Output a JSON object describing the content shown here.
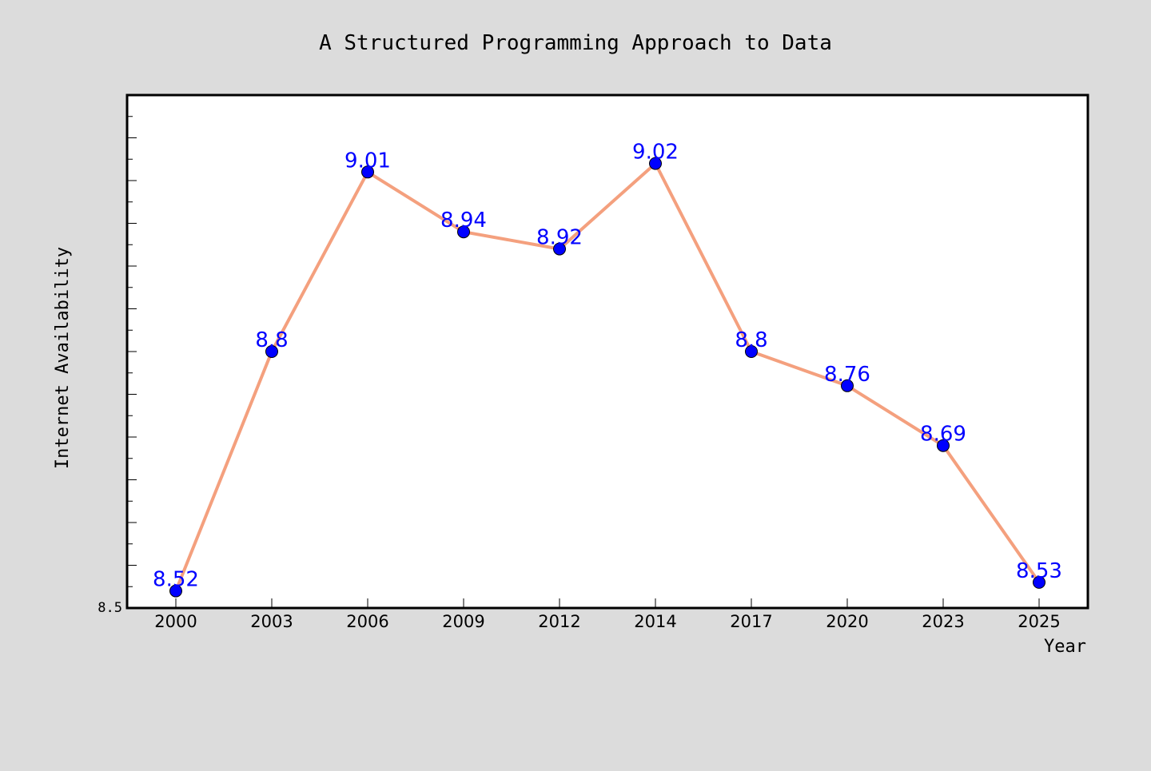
{
  "chart_data": {
    "type": "line",
    "title": "A Structured Programming Approach to Data",
    "xlabel": "Year",
    "ylabel": "Internet Availability",
    "categories": [
      "2000",
      "2003",
      "2006",
      "2009",
      "2012",
      "2014",
      "2017",
      "2020",
      "2023",
      "2025"
    ],
    "series": [
      {
        "values": [
          8.52,
          8.8,
          9.01,
          8.94,
          8.92,
          9.02,
          8.8,
          8.76,
          8.69,
          8.53
        ],
        "line_color": "#f4a07e",
        "marker_color": "#0000ff",
        "label_color": "#0000ff"
      }
    ],
    "data_labels": [
      "8.52",
      "8.8",
      "9.01",
      "8.94",
      "8.92",
      "9.02",
      "8.8",
      "8.76",
      "8.69",
      "8.53"
    ],
    "y_tick_labels": [
      "8.5"
    ],
    "ylim": [
      8.5,
      9.1
    ],
    "grid": false,
    "legend": "none",
    "background_color": "#dcdcdc",
    "plot_background_color": "#ffffff"
  }
}
